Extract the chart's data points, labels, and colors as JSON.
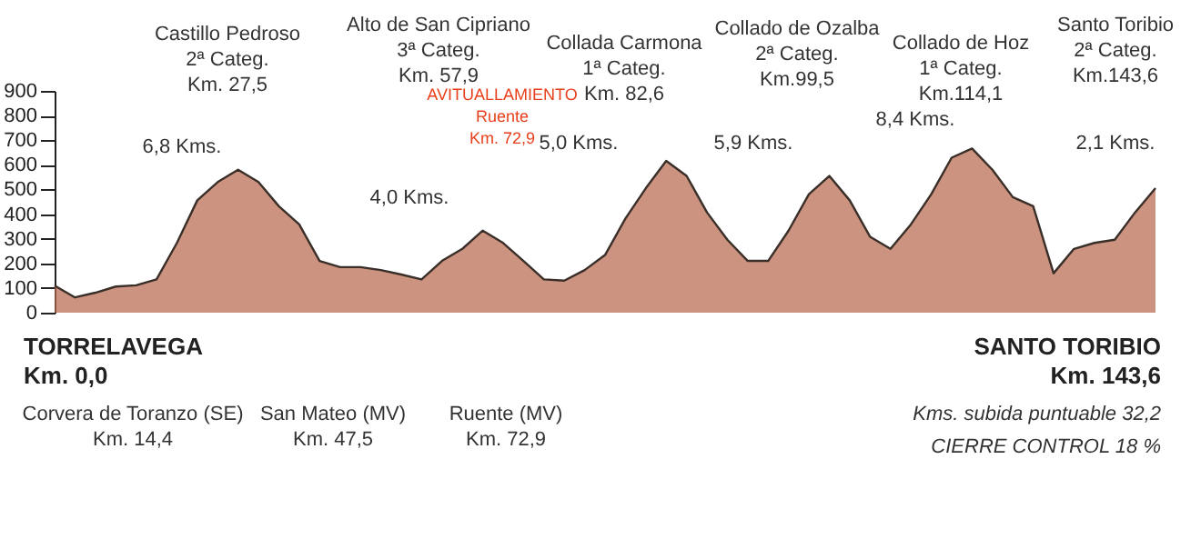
{
  "chart_data": {
    "type": "area",
    "categories": [
      null,
      null,
      null,
      null,
      null,
      null,
      null,
      null,
      null,
      null,
      null,
      null,
      null,
      null,
      null,
      null,
      null,
      null,
      null,
      null,
      null,
      null,
      null,
      null,
      null,
      null,
      null,
      null,
      null,
      null,
      null,
      null,
      null,
      null,
      null,
      null,
      null,
      null,
      null,
      null,
      null,
      null,
      null,
      null,
      null,
      null,
      null,
      null,
      null,
      null,
      null,
      null,
      null,
      null,
      null
    ],
    "series": [
      {
        "color": "#b5654a",
        "values": [
          110,
          62,
          81,
          106,
          111,
          135,
          283,
          456,
          530,
          580,
          530,
          432,
          358,
          210,
          185,
          185,
          173,
          155,
          135,
          210,
          259,
          333,
          283,
          210,
          135,
          130,
          173,
          234,
          382,
          505,
          616,
          555,
          407,
          296,
          210,
          210,
          333,
          481,
          555,
          456,
          308,
          259,
          358,
          481,
          629,
          666,
          580,
          469,
          432,
          160,
          259,
          283,
          296,
          407,
          505
        ]
      }
    ],
    "ylim": [
      0,
      900
    ],
    "yticks": [
      0,
      100,
      200,
      300,
      400,
      500,
      600,
      700,
      800,
      900
    ],
    "tick_labels": "y",
    "grid": false,
    "annotations": [
      "Castillo Pedroso\n2ª Categ.\nKm. 27,5",
      "6,8 Kms.",
      "Alto de San Cipriano\n3ª Categ.\nKm. 57,9",
      "4,0 Kms.",
      "AVITUALLAMIENTO\nRuente\nKm. 72,9",
      "Collada Carmona\n1ª Categ.\nKm. 82,6",
      "5,0 Kms.",
      "Collado de Ozalba\n2ª Categ.\nKm.99,5",
      "5,9 Kms.",
      "Collado de Hoz\n1ª Categ.\nKm.114,1",
      "8,4 Kms.",
      "Santo Toribio\n2ª Categ.\nKm.143,6",
      "2,1 Kms.",
      "TORRELAVEGA\nKm. 0,0",
      "SANTO TORIBIO\nKm. 143,6",
      "Corvera de Toranzo (SE)\nKm. 14,4",
      "San Mateo (MV)\nKm. 47,5",
      "Ruente (MV)\nKm. 72,9",
      "Kms. subida puntuable 32,2",
      "CIERRE CONTROL 18 %"
    ]
  }
}
